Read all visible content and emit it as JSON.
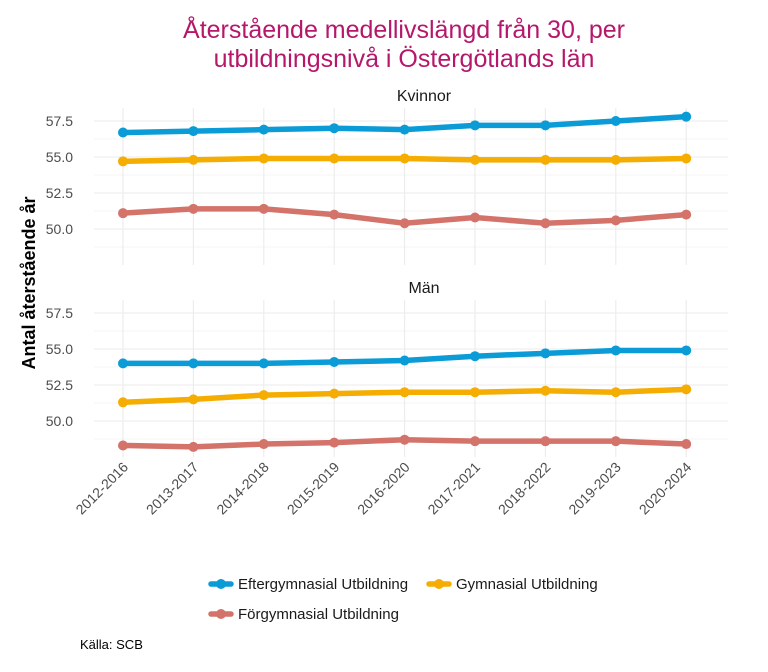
{
  "chart_data": {
    "type": "line",
    "title": "Återstående medellivslängd från 30, per utbildningsnivå i Östergötlands län",
    "title_lines": [
      "Återstående medellivslängd från 30, per",
      "utbildningsnivå i Östergötlands län"
    ],
    "ylabel": "Antal återstående år",
    "caption": "Källa: SCB",
    "categories": [
      "2012-2016",
      "2013-2017",
      "2014-2018",
      "2015-2019",
      "2016-2020",
      "2017-2021",
      "2018-2022",
      "2019-2023",
      "2020-2024"
    ],
    "y_ticks": [
      "50.0",
      "52.5",
      "55.0",
      "57.5"
    ],
    "ylim": [
      48.2,
      58.3
    ],
    "legend_position": "bottom",
    "colors": {
      "title": "#b5176b",
      "Eftergymnasial Utbildning": "#0b9bd6",
      "Gymnasial Utbildning": "#f4ad00",
      "Förgymnasial Utbildning": "#d3736a"
    },
    "legend": [
      "Eftergymnasial Utbildning",
      "Gymnasial Utbildning",
      "Förgymnasial Utbildning"
    ],
    "panels": [
      {
        "title": "Kvinnor",
        "series": [
          {
            "name": "Eftergymnasial Utbildning",
            "values": [
              56.7,
              56.8,
              56.9,
              57.0,
              56.9,
              57.2,
              57.2,
              57.5,
              57.8
            ]
          },
          {
            "name": "Gymnasial Utbildning",
            "values": [
              54.7,
              54.8,
              54.9,
              54.9,
              54.9,
              54.8,
              54.8,
              54.8,
              54.9
            ]
          },
          {
            "name": "Förgymnasial Utbildning",
            "values": [
              51.1,
              51.4,
              51.4,
              51.0,
              50.4,
              50.8,
              50.4,
              50.6,
              51.0
            ]
          }
        ]
      },
      {
        "title": "Män",
        "series": [
          {
            "name": "Eftergymnasial Utbildning",
            "values": [
              54.0,
              54.0,
              54.0,
              54.1,
              54.2,
              54.5,
              54.7,
              54.9,
              54.9
            ]
          },
          {
            "name": "Gymnasial Utbildning",
            "values": [
              51.3,
              51.5,
              51.8,
              51.9,
              52.0,
              52.0,
              52.1,
              52.0,
              52.2
            ]
          },
          {
            "name": "Förgymnasial Utbildning",
            "values": [
              48.3,
              48.2,
              48.4,
              48.5,
              48.7,
              48.6,
              48.6,
              48.6,
              48.4
            ]
          }
        ]
      }
    ]
  }
}
